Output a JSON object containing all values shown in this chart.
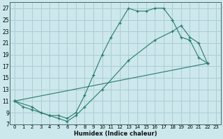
{
  "xlabel": "Humidex (Indice chaleur)",
  "bg_color": "#cce8ec",
  "grid_color": "#aacdd4",
  "line_color": "#2a7a6a",
  "xlim": [
    -0.5,
    23.5
  ],
  "ylim": [
    7,
    28
  ],
  "xticks": [
    0,
    1,
    2,
    3,
    4,
    5,
    6,
    7,
    8,
    9,
    10,
    11,
    12,
    13,
    14,
    15,
    16,
    17,
    18,
    19,
    20,
    21,
    22,
    23
  ],
  "yticks": [
    7,
    9,
    11,
    13,
    15,
    17,
    19,
    21,
    23,
    25,
    27
  ],
  "line1_x": [
    0,
    1,
    2,
    3,
    4,
    5,
    6,
    7,
    8,
    9,
    10,
    11,
    12,
    13,
    14,
    15,
    16,
    17,
    18,
    19,
    20,
    21,
    22
  ],
  "line1_y": [
    11,
    10,
    9.5,
    9,
    8.5,
    8.5,
    8.0,
    9.0,
    12.0,
    15.5,
    19.0,
    22.0,
    24.5,
    27.0,
    26.5,
    26.5,
    27.0,
    27.0,
    25.0,
    22.0,
    21.5,
    18.5,
    17.5
  ],
  "line2_x": [
    0,
    2,
    3,
    4,
    5,
    6,
    7,
    8,
    10,
    13,
    16,
    18,
    19,
    20,
    21,
    22
  ],
  "line2_y": [
    11,
    10,
    9,
    8.5,
    8,
    7.5,
    8.5,
    10.0,
    13.0,
    18.0,
    21.5,
    23.0,
    24.0,
    22.0,
    21.0,
    17.5
  ],
  "line3_x": [
    0,
    22
  ],
  "line3_y": [
    11,
    17.5
  ]
}
